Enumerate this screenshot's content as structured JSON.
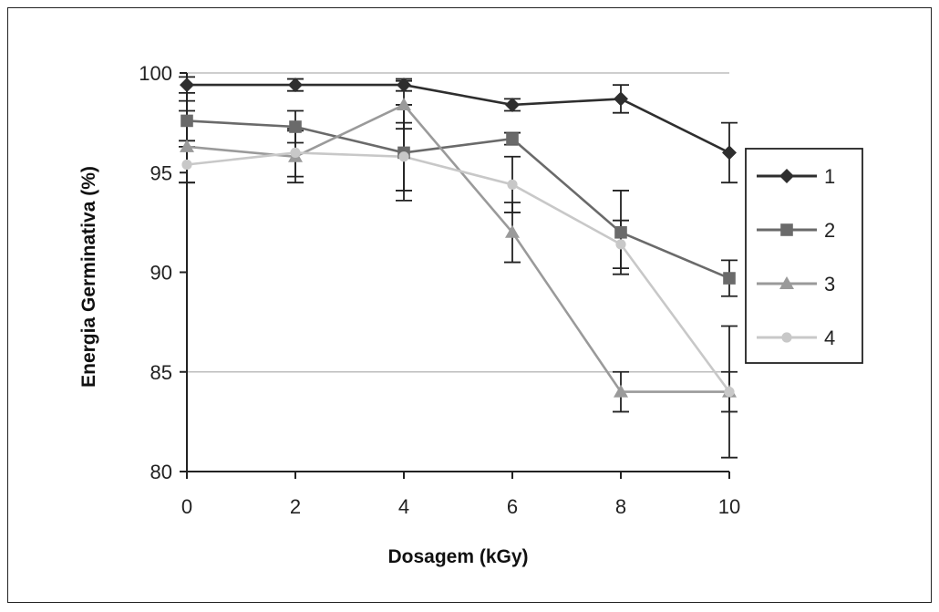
{
  "chart_data": {
    "type": "line",
    "title": "",
    "xlabel": "Dosagem (kGy)",
    "ylabel": "Energia Germinativa  (%)",
    "x": [
      0,
      2,
      4,
      6,
      8,
      10
    ],
    "x_ticks": [
      "0",
      "2",
      "4",
      "6",
      "8",
      "10"
    ],
    "y_ticks": [
      "80",
      "85",
      "90",
      "95",
      "100"
    ],
    "ylim": [
      80,
      100
    ],
    "xlim": [
      0,
      10
    ],
    "grid": "horizontal lines at 85 and 100",
    "legend_position": "right",
    "series": [
      {
        "name": "1",
        "marker": "diamond",
        "color": "#2e2e2e",
        "values": [
          99.4,
          99.4,
          99.4,
          98.4,
          98.7,
          96.0
        ],
        "error": [
          0.4,
          0.3,
          0.3,
          0.3,
          0.7,
          1.5
        ]
      },
      {
        "name": "2",
        "marker": "square",
        "color": "#6a6a6a",
        "values": [
          97.6,
          97.3,
          96.0,
          96.7,
          92.0,
          89.7
        ],
        "error": [
          1.0,
          0.8,
          2.4,
          0.3,
          2.1,
          0.9
        ]
      },
      {
        "name": "3",
        "marker": "triangle",
        "color": "#9a9a9a",
        "values": [
          96.3,
          95.8,
          98.4,
          92.0,
          84.0,
          84.0
        ],
        "error": [
          1.8,
          1.3,
          1.2,
          1.5,
          1.0,
          3.3
        ]
      },
      {
        "name": "4",
        "marker": "circle",
        "color": "#c8c8c8",
        "values": [
          95.4,
          96.0,
          95.8,
          94.4,
          91.4,
          84.0
        ],
        "error": [
          0.9,
          1.2,
          1.7,
          1.4,
          1.2,
          1.0
        ]
      }
    ]
  }
}
